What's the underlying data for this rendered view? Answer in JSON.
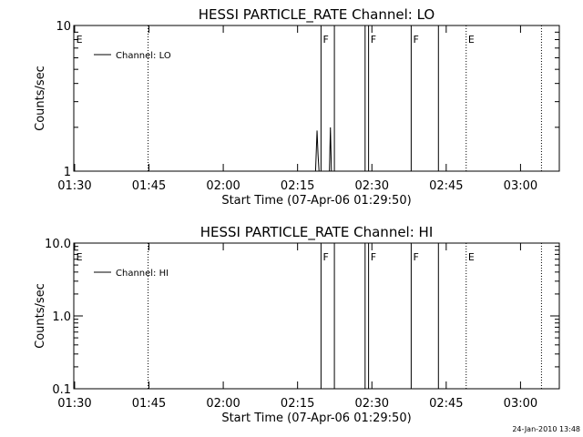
{
  "footer": {
    "timestamp": "24-Jan-2010 13:48"
  },
  "chart_data": [
    {
      "type": "line",
      "title": "HESSI PARTICLE_RATE Channel: LO",
      "xlabel": "Start Time (07-Apr-06 01:29:50)",
      "ylabel": "Counts/sec",
      "x_tick_labels": [
        "01:30",
        "01:45",
        "02:00",
        "02:15",
        "02:30",
        "02:45",
        "03:00"
      ],
      "x_ticks_min": [
        0.17,
        15.17,
        30.17,
        45.17,
        60.17,
        75.17,
        90.17
      ],
      "xlim_min": [
        0,
        98
      ],
      "y_scale": "log",
      "ylim": [
        1,
        10
      ],
      "y_tick_values": [
        1,
        10
      ],
      "y_tick_labels": [
        "1",
        "10"
      ],
      "grid": false,
      "legend_position": "top-left",
      "series": [
        {
          "name": "Channel: LO",
          "x_min": [
            48.8,
            49.1,
            49.3,
            49.5,
            51.6,
            51.8,
            52.0
          ],
          "y": [
            1,
            1.9,
            1.3,
            1,
            1,
            2.0,
            1
          ]
        }
      ],
      "dotted_vlines_min": [
        15.0,
        79.2,
        94.4
      ],
      "solid_vlines_min": [
        49.9,
        52.6,
        58.8,
        59.5,
        68.1,
        73.6
      ],
      "markers": [
        {
          "label": "E",
          "x_min": 0.3
        },
        {
          "label": "F",
          "x_min": 50.1
        },
        {
          "label": "F",
          "x_min": 59.7
        },
        {
          "label": "F",
          "x_min": 68.3
        },
        {
          "label": "E",
          "x_min": 79.4
        }
      ]
    },
    {
      "type": "line",
      "title": "HESSI PARTICLE_RATE Channel: HI",
      "xlabel": "Start Time (07-Apr-06 01:29:50)",
      "ylabel": "Counts/sec",
      "x_tick_labels": [
        "01:30",
        "01:45",
        "02:00",
        "02:15",
        "02:30",
        "02:45",
        "03:00"
      ],
      "x_ticks_min": [
        0.17,
        15.17,
        30.17,
        45.17,
        60.17,
        75.17,
        90.17
      ],
      "xlim_min": [
        0,
        98
      ],
      "y_scale": "log",
      "ylim": [
        0.1,
        10
      ],
      "y_tick_values": [
        0.1,
        1,
        10
      ],
      "y_tick_labels": [
        "0.1",
        "1.0",
        "10.0"
      ],
      "grid": false,
      "legend_position": "top-left",
      "series": [
        {
          "name": "Channel: HI",
          "x_min": [],
          "y": []
        }
      ],
      "dotted_vlines_min": [
        15.0,
        79.2,
        94.4
      ],
      "solid_vlines_min": [
        49.9,
        52.6,
        58.8,
        59.5,
        68.1,
        73.6
      ],
      "markers": [
        {
          "label": "E",
          "x_min": 0.3
        },
        {
          "label": "F",
          "x_min": 50.1
        },
        {
          "label": "F",
          "x_min": 59.7
        },
        {
          "label": "F",
          "x_min": 68.3
        },
        {
          "label": "E",
          "x_min": 79.4
        }
      ]
    }
  ]
}
